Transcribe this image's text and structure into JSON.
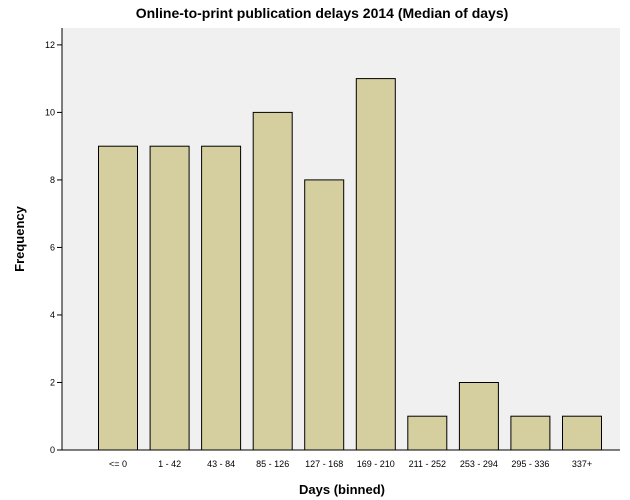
{
  "colors": {
    "plot_background": "#f0f0f0",
    "bar_fill": "#d5cf9f",
    "bar_stroke": "#000000"
  },
  "chart_data": {
    "type": "bar",
    "title": "Online-to-print publication delays 2014 (Median of days)",
    "xlabel": "Days (binned)",
    "ylabel": "Frequency",
    "categories": [
      "<= 0",
      "1 - 42",
      "43 - 84",
      "85 - 126",
      "127 - 168",
      "169 - 210",
      "211 - 252",
      "253 - 294",
      "295 - 336",
      "337+"
    ],
    "values": [
      9,
      9,
      9,
      10,
      8,
      11,
      1,
      2,
      1,
      1
    ],
    "ylim": [
      0,
      12.5
    ],
    "yticks": [
      0,
      2,
      4,
      6,
      8,
      10,
      12
    ],
    "grid": false,
    "legend": "none"
  }
}
